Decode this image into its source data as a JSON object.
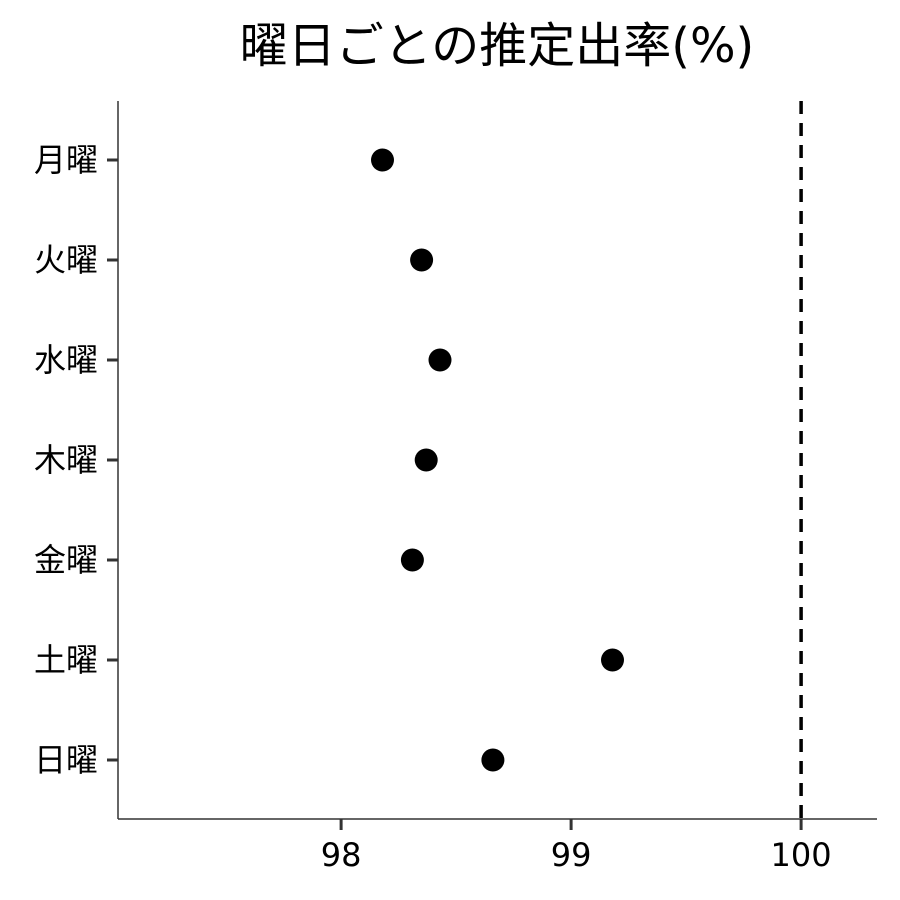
{
  "chart_data": {
    "type": "scatter",
    "title": "曜日ごとの推定出率(%)",
    "xlabel": "",
    "ylabel": "",
    "categories": [
      "月曜",
      "火曜",
      "水曜",
      "木曜",
      "金曜",
      "土曜",
      "日曜"
    ],
    "values": [
      98.18,
      98.35,
      98.43,
      98.37,
      98.31,
      99.18,
      98.66
    ],
    "xlim": [
      97.03,
      100.33
    ],
    "xticks": [
      98,
      99,
      100
    ],
    "xtick_labels": [
      "98",
      "99",
      "100"
    ],
    "reference_line": {
      "x": 100,
      "style": "dashed"
    },
    "grid": false,
    "legend": "none",
    "colors": {
      "point": "#000000",
      "axis": "#333333",
      "reference_line": "#000000"
    }
  }
}
